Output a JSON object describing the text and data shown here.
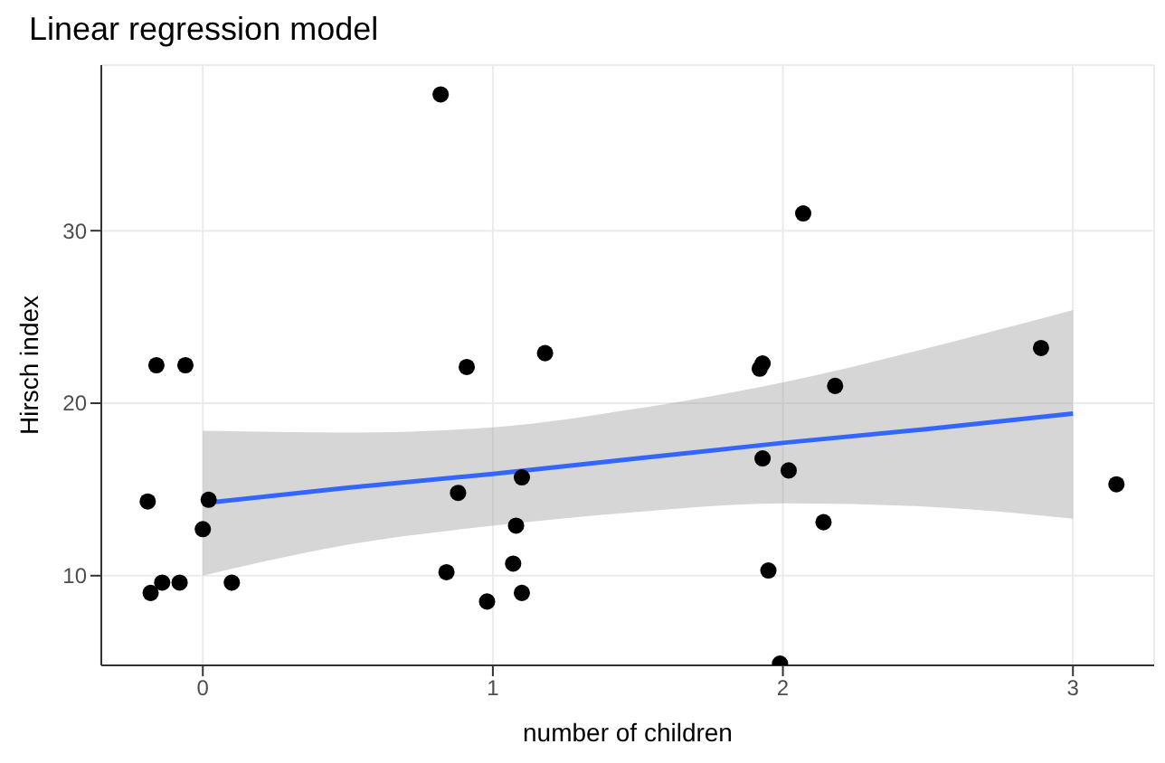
{
  "chart_data": {
    "type": "scatter",
    "title": "Linear regression model",
    "xlabel": "number of children",
    "ylabel": "Hirsch index",
    "xlim": [
      -0.35,
      3.28
    ],
    "ylim": [
      4.8,
      39.6
    ],
    "xticks": [
      0,
      1,
      2,
      3
    ],
    "yticks": [
      10,
      20,
      30
    ],
    "grid": true,
    "series": [
      {
        "marker": "circle",
        "color": "#000000",
        "x": [
          0.82,
          2.07,
          -0.16,
          -0.06,
          0.91,
          1.18,
          1.92,
          1.93,
          2.18,
          2.89,
          -0.19,
          0.02,
          0.0,
          -0.18,
          -0.14,
          -0.08,
          0.1,
          0.88,
          0.84,
          0.98,
          1.1,
          1.07,
          1.08,
          1.1,
          1.93,
          2.02,
          2.14,
          1.95,
          1.99,
          3.15
        ],
        "values": [
          37.9,
          31.0,
          22.2,
          22.2,
          22.1,
          22.9,
          22.0,
          22.3,
          21.0,
          23.2,
          14.3,
          14.4,
          12.7,
          9.0,
          9.6,
          9.6,
          9.6,
          14.8,
          10.2,
          8.5,
          9.0,
          10.7,
          12.9,
          15.7,
          16.8,
          16.1,
          13.1,
          10.3,
          4.9,
          15.3
        ]
      },
      {
        "type": "line",
        "color": "#3366ff",
        "x": [
          0,
          0.5,
          1,
          1.5,
          2,
          2.5,
          3
        ],
        "values": [
          14.2,
          15.1,
          15.9,
          16.8,
          17.7,
          18.5,
          19.4
        ],
        "lower": [
          10.0,
          11.8,
          12.9,
          13.7,
          14.2,
          14.0,
          13.3
        ],
        "upper": [
          18.4,
          18.3,
          18.6,
          19.7,
          21.2,
          23.2,
          25.4
        ]
      }
    ]
  }
}
